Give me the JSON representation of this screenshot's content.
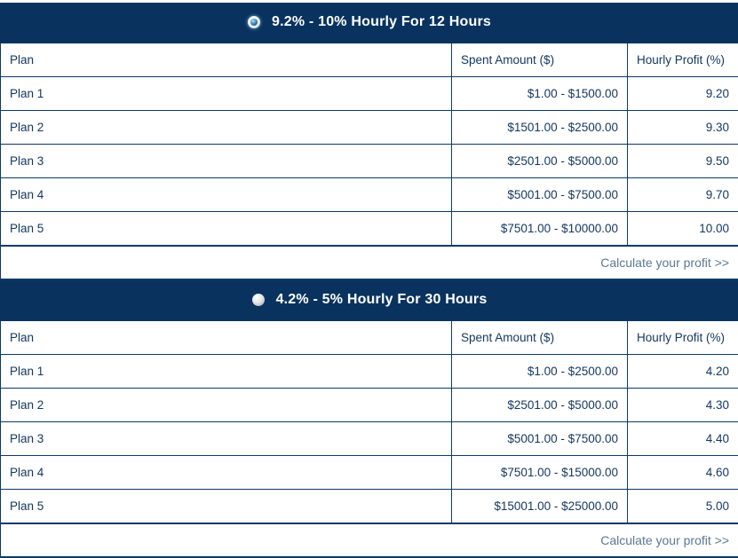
{
  "colors": {
    "header_bg": "#09335e",
    "border": "#0d3a64",
    "cell_text": "#12365e",
    "title_text": "#ffffff",
    "link": "#5a7894",
    "radio_dot": "#2f7cb4"
  },
  "sections": [
    {
      "title": "9.2% - 10% Hourly For 12 Hours",
      "radio_selected": true,
      "columns": {
        "plan": "Plan",
        "spent": "Spent Amount ($)",
        "profit": "Hourly Profit (%)"
      },
      "rows": [
        {
          "plan": "Plan 1",
          "spent": "$1.00 - $1500.00",
          "profit": "9.20"
        },
        {
          "plan": "Plan 2",
          "spent": "$1501.00 - $2500.00",
          "profit": "9.30"
        },
        {
          "plan": "Plan 3",
          "spent": "$2501.00 - $5000.00",
          "profit": "9.50"
        },
        {
          "plan": "Plan 4",
          "spent": "$5001.00 - $7500.00",
          "profit": "9.70"
        },
        {
          "plan": "Plan 5",
          "spent": "$7501.00 - $10000.00",
          "profit": "10.00"
        }
      ],
      "footer_link": "Calculate your profit >>"
    },
    {
      "title": "4.2% - 5% Hourly For 30 Hours",
      "radio_selected": false,
      "columns": {
        "plan": "Plan",
        "spent": "Spent Amount ($)",
        "profit": "Hourly Profit (%)"
      },
      "rows": [
        {
          "plan": "Plan 1",
          "spent": "$1.00 - $2500.00",
          "profit": "4.20"
        },
        {
          "plan": "Plan 2",
          "spent": "$2501.00 - $5000.00",
          "profit": "4.30"
        },
        {
          "plan": "Plan 3",
          "spent": "$5001.00 - $7500.00",
          "profit": "4.40"
        },
        {
          "plan": "Plan 4",
          "spent": "$7501.00 - $15000.00",
          "profit": "4.60"
        },
        {
          "plan": "Plan 5",
          "spent": "$15001.00 - $25000.00",
          "profit": "5.00"
        }
      ],
      "footer_link": "Calculate your profit >>"
    }
  ]
}
